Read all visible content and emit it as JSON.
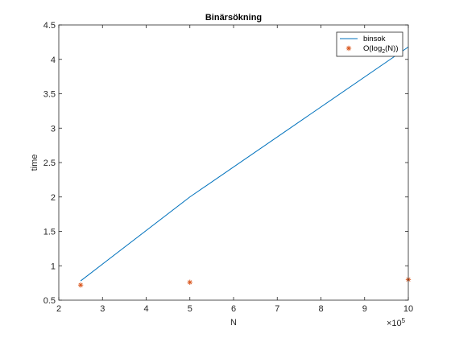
{
  "chart_data": {
    "type": "line",
    "title": "Binärsökning",
    "xlabel": "N",
    "ylabel": "time",
    "xlim": [
      200000,
      1000000
    ],
    "ylim": [
      0.5,
      4.5
    ],
    "x_scale_exponent": "×10",
    "x_scale_power": "5",
    "x_ticks": [
      200000,
      300000,
      400000,
      500000,
      600000,
      700000,
      800000,
      900000,
      1000000
    ],
    "x_tick_labels": [
      "2",
      "3",
      "4",
      "5",
      "6",
      "7",
      "8",
      "9",
      "10"
    ],
    "y_ticks": [
      0.5,
      1,
      1.5,
      2,
      2.5,
      3,
      3.5,
      4,
      4.5
    ],
    "y_tick_labels": [
      "0.5",
      "1",
      "1.5",
      "2",
      "2.5",
      "3",
      "3.5",
      "4",
      "4.5"
    ],
    "grid": false,
    "legend_position": "top-right",
    "series": [
      {
        "name": "binsok",
        "style": "line",
        "color": "#0072BD",
        "x": [
          250000,
          500000,
          1000000
        ],
        "y": [
          0.78,
          2.0,
          4.18
        ]
      },
      {
        "name_prefix": "O(log",
        "name_sub": "2",
        "name_suffix": "(N))",
        "style": "asterisk",
        "color": "#D95319",
        "x": [
          250000,
          500000,
          1000000
        ],
        "y": [
          0.72,
          0.76,
          0.8
        ]
      }
    ]
  }
}
